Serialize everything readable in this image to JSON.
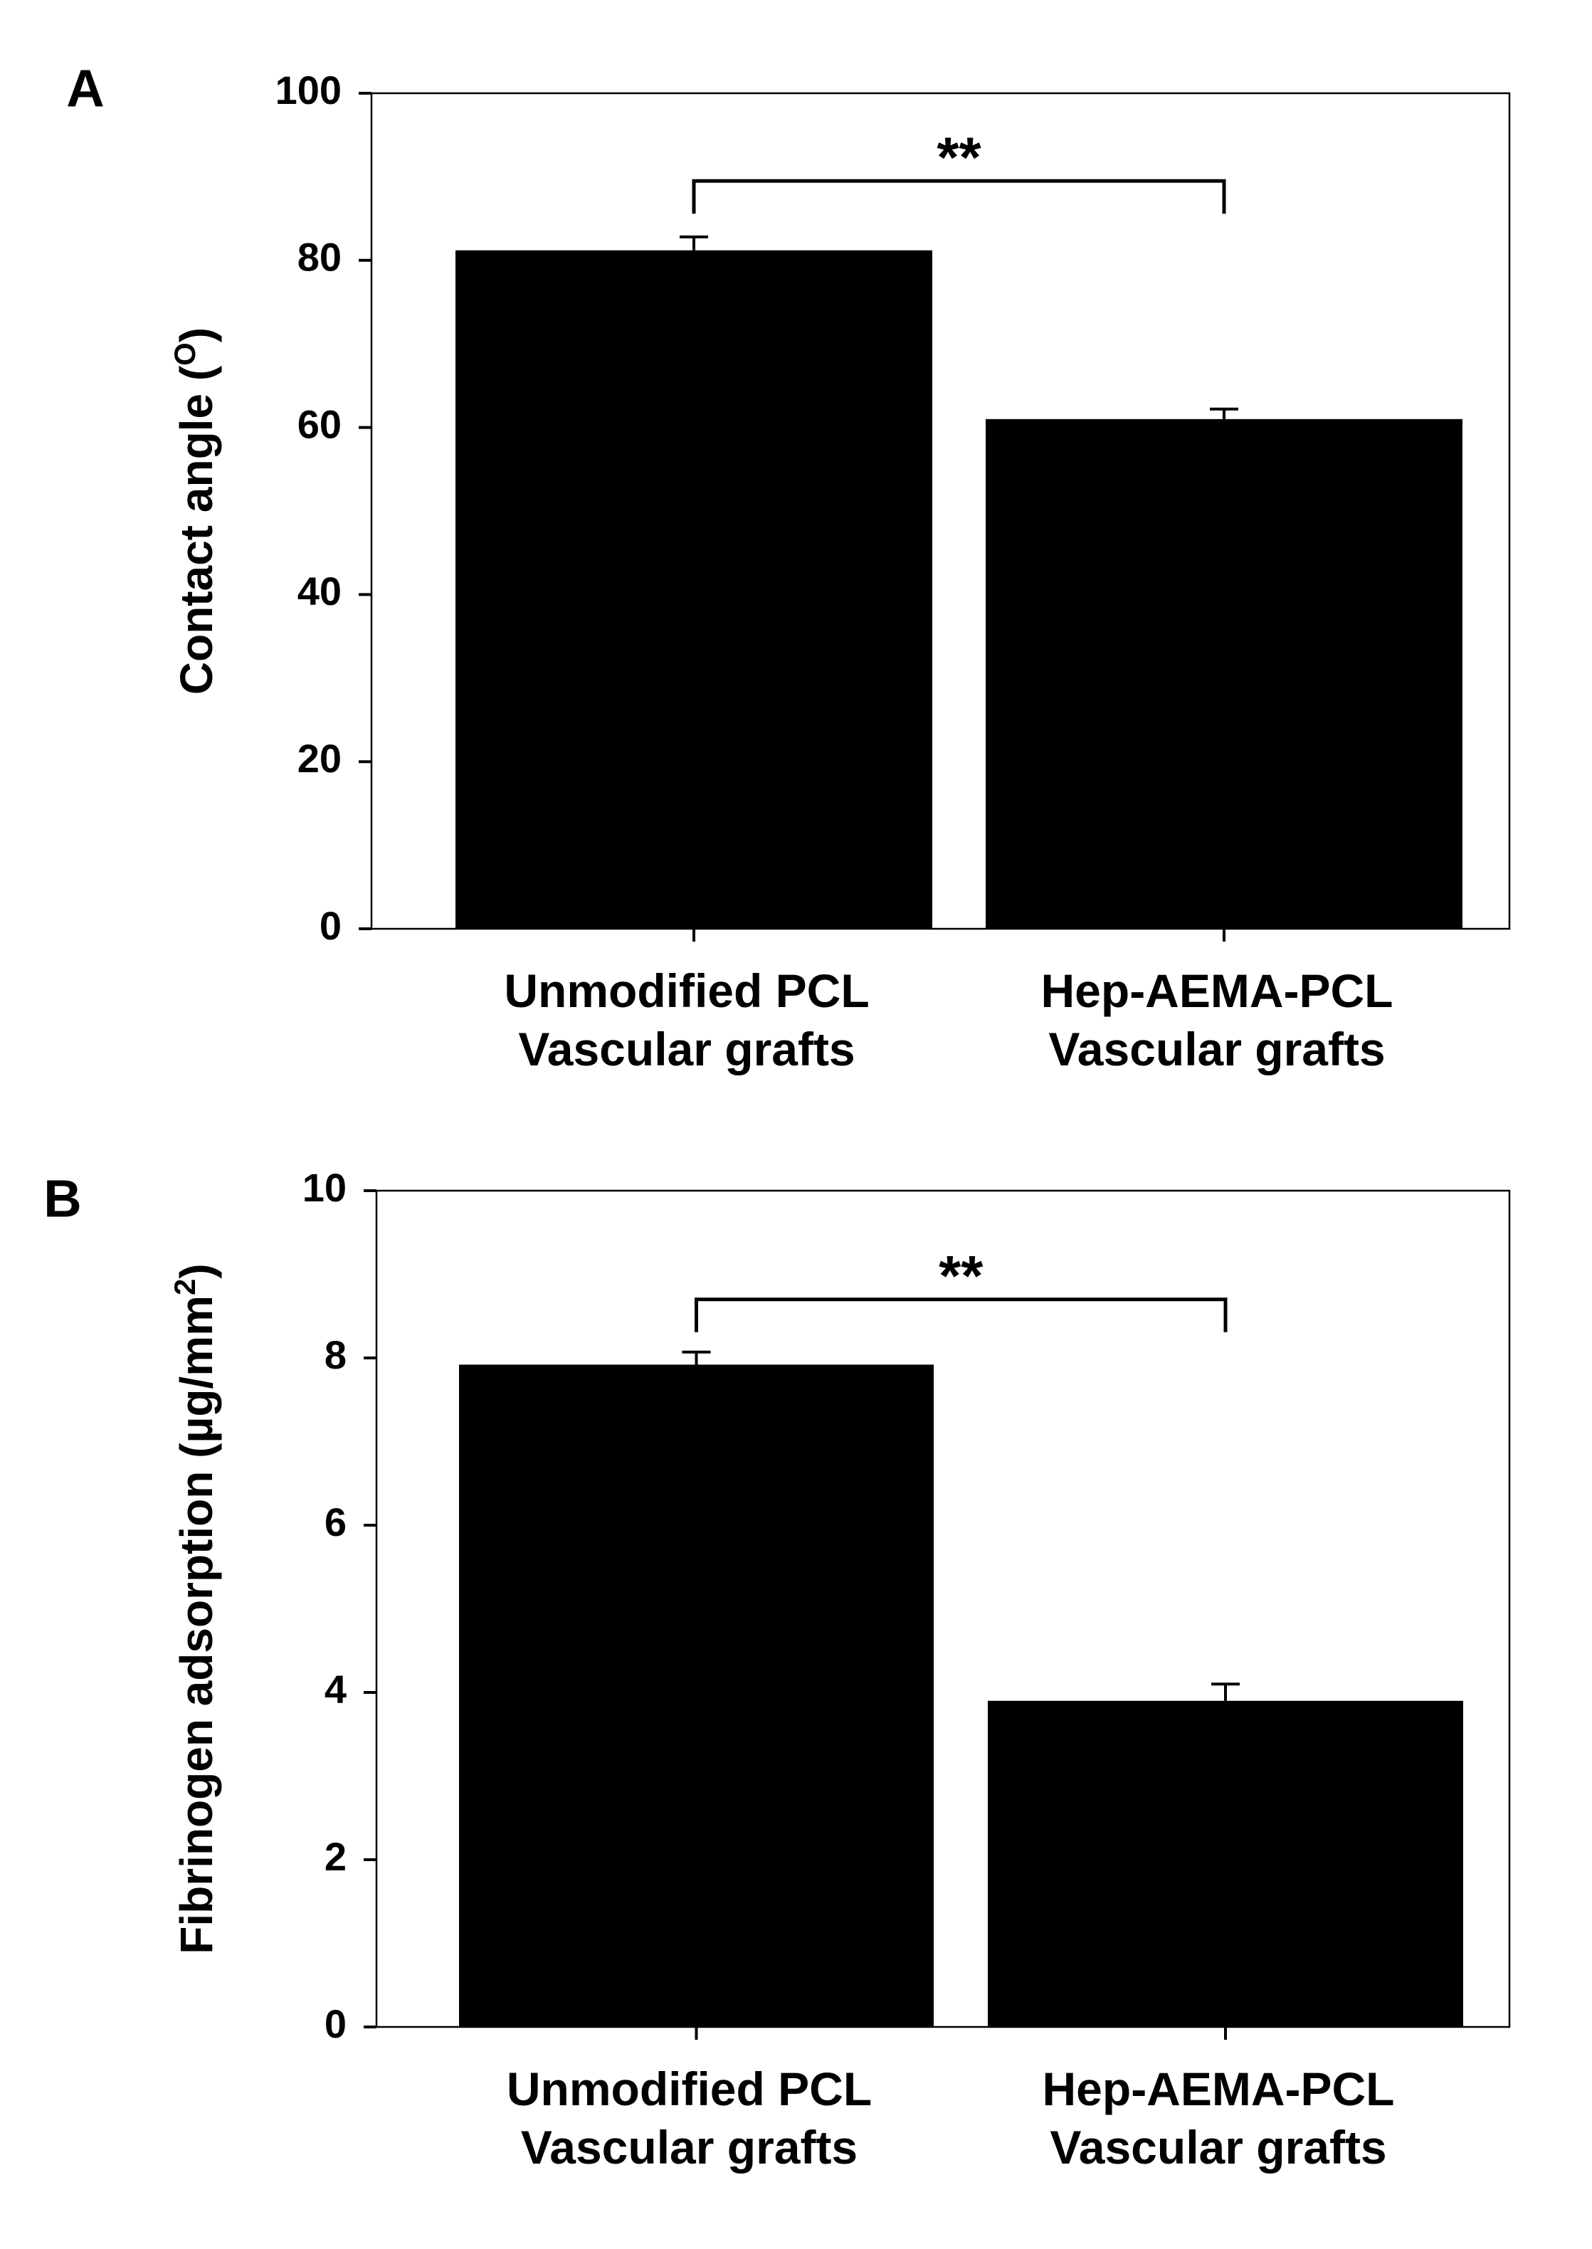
{
  "chart_data": [
    {
      "type": "bar",
      "panel_label": "A",
      "ylabel": "Contact angle (",
      "ylabel_sup": "O",
      "ylabel_end": ")",
      "ylim": [
        0,
        100
      ],
      "yticks": [
        "0",
        "20",
        "40",
        "60",
        "80",
        "100"
      ],
      "categories": [
        {
          "line1": "Unmodified PCL",
          "line2": "Vascular grafts"
        },
        {
          "line1": "Hep-AEMA-PCL",
          "line2": "Vascular grafts"
        }
      ],
      "values": [
        81.2,
        61.0
      ],
      "errors": [
        1.6,
        1.2
      ],
      "significance": {
        "label": "**",
        "from": 0,
        "to": 1,
        "level": 89.5
      },
      "bar_color": "#000000",
      "grid": false
    },
    {
      "type": "bar",
      "panel_label": "B",
      "ylabel": "Fibrinogen adsorption (µg/mm",
      "ylabel_sup": "2",
      "ylabel_end": ")",
      "ylim": [
        0,
        10
      ],
      "yticks": [
        "0",
        "2",
        "4",
        "6",
        "8",
        "10"
      ],
      "categories": [
        {
          "line1": "Unmodified PCL",
          "line2": "Vascular grafts"
        },
        {
          "line1": "Hep-AEMA-PCL",
          "line2": "Vascular grafts"
        }
      ],
      "values": [
        7.92,
        3.9
      ],
      "errors": [
        0.15,
        0.2
      ],
      "significance": {
        "label": "**",
        "from": 0,
        "to": 1,
        "level": 8.7
      },
      "bar_color": "#000000",
      "grid": false
    }
  ]
}
